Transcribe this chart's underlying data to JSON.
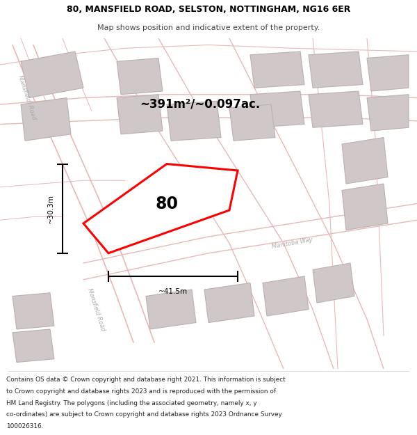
{
  "title_line1": "80, MANSFIELD ROAD, SELSTON, NOTTINGHAM, NG16 6ER",
  "title_line2": "Map shows position and indicative extent of the property.",
  "footer_text": "Contains OS data © Crown copyright and database right 2021. This information is subject to Crown copyright and database rights 2023 and is reproduced with the permission of HM Land Registry. The polygons (including the associated geometry, namely x, y co-ordinates) are subject to Crown copyright and database rights 2023 Ordnance Survey 100026316.",
  "map_bg": "#f5f0f0",
  "road_color": "#e8b8b8",
  "building_color": "#d0c8c8",
  "building_edge": "#bbb0b0",
  "plot_color": "#ff0000",
  "area_text": "~391m²/~0.097ac.",
  "label_80": "80",
  "dim_width": "~41.5m",
  "dim_height": "~30.3m"
}
